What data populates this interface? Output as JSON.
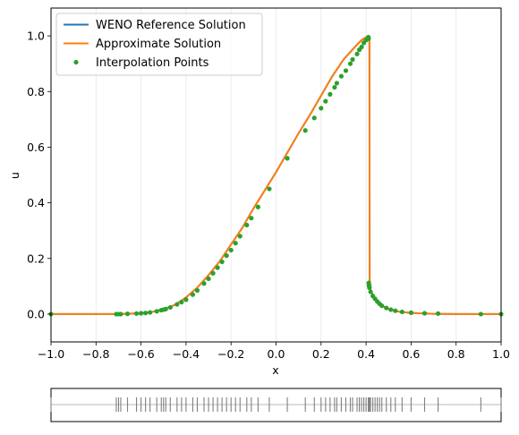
{
  "chart_data": [
    {
      "type": "line",
      "xlabel": "x",
      "ylabel": "u",
      "xlim": [
        -1.0,
        1.0
      ],
      "ylim": [
        -0.1,
        1.1
      ],
      "x_ticks": [
        "−1.0",
        "−0.8",
        "−0.6",
        "−0.4",
        "−0.2",
        "0.0",
        "0.2",
        "0.4",
        "0.6",
        "0.8",
        "1.0"
      ],
      "x_tick_values": [
        -1.0,
        -0.8,
        -0.6,
        -0.4,
        -0.2,
        0.0,
        0.2,
        0.4,
        0.6,
        0.8,
        1.0
      ],
      "y_ticks": [
        "0.0",
        "0.2",
        "0.4",
        "0.6",
        "0.8",
        "1.0"
      ],
      "y_tick_values": [
        0.0,
        0.2,
        0.4,
        0.6,
        0.8,
        1.0
      ],
      "grid": "vertical",
      "legend_position": "top-left",
      "colors": {
        "reference": "#1f77b4",
        "approx": "#ff7f0e",
        "points": "#2ca02c"
      },
      "series": [
        {
          "name": "WENO Reference Solution",
          "style": "line",
          "x": [
            -1.0,
            -0.7,
            -0.6,
            -0.55,
            -0.5,
            -0.45,
            -0.4,
            -0.35,
            -0.3,
            -0.25,
            -0.2,
            -0.15,
            -0.1,
            -0.05,
            0.0,
            0.05,
            0.1,
            0.15,
            0.2,
            0.25,
            0.3,
            0.35,
            0.38,
            0.4,
            0.41,
            0.415,
            0.416,
            0.42,
            0.44,
            0.47,
            0.5,
            0.55,
            0.6,
            0.7,
            0.8,
            1.0
          ],
          "y": [
            0.0,
            0.0,
            0.003,
            0.008,
            0.018,
            0.033,
            0.06,
            0.095,
            0.14,
            0.19,
            0.25,
            0.31,
            0.38,
            0.445,
            0.51,
            0.58,
            0.65,
            0.715,
            0.785,
            0.855,
            0.915,
            0.96,
            0.985,
            0.995,
            1.0,
            0.99,
            0.12,
            0.085,
            0.055,
            0.03,
            0.018,
            0.008,
            0.004,
            0.001,
            0.0,
            0.0
          ]
        },
        {
          "name": "Approximate Solution",
          "style": "line",
          "x": [
            -1.0,
            -0.7,
            -0.6,
            -0.55,
            -0.5,
            -0.45,
            -0.4,
            -0.35,
            -0.3,
            -0.25,
            -0.2,
            -0.15,
            -0.1,
            -0.05,
            0.0,
            0.05,
            0.1,
            0.15,
            0.2,
            0.25,
            0.3,
            0.35,
            0.38,
            0.4,
            0.41,
            0.415,
            0.416,
            0.42,
            0.44,
            0.47,
            0.5,
            0.55,
            0.6,
            0.7,
            0.8,
            1.0
          ],
          "y": [
            0.0,
            0.0,
            0.003,
            0.008,
            0.018,
            0.033,
            0.06,
            0.095,
            0.14,
            0.19,
            0.25,
            0.31,
            0.38,
            0.445,
            0.51,
            0.58,
            0.65,
            0.715,
            0.785,
            0.855,
            0.915,
            0.96,
            0.985,
            0.995,
            1.0,
            0.99,
            0.12,
            0.085,
            0.055,
            0.03,
            0.018,
            0.008,
            0.004,
            0.001,
            0.0,
            0.0
          ]
        },
        {
          "name": "Interpolation Points",
          "style": "markers",
          "x": [
            -1.0,
            -0.71,
            -0.7,
            -0.69,
            -0.66,
            -0.62,
            -0.6,
            -0.58,
            -0.56,
            -0.53,
            -0.51,
            -0.5,
            -0.49,
            -0.47,
            -0.44,
            -0.42,
            -0.4,
            -0.37,
            -0.35,
            -0.32,
            -0.3,
            -0.28,
            -0.26,
            -0.24,
            -0.22,
            -0.2,
            -0.18,
            -0.16,
            -0.13,
            -0.11,
            -0.08,
            -0.03,
            0.05,
            0.13,
            0.17,
            0.2,
            0.22,
            0.24,
            0.26,
            0.27,
            0.29,
            0.31,
            0.33,
            0.34,
            0.36,
            0.37,
            0.38,
            0.39,
            0.4,
            0.41,
            0.411,
            0.412,
            0.413,
            0.414,
            0.415,
            0.42,
            0.43,
            0.44,
            0.45,
            0.46,
            0.47,
            0.49,
            0.51,
            0.53,
            0.56,
            0.6,
            0.66,
            0.72,
            0.91,
            1.0
          ],
          "y": [
            0.0,
            0.0,
            0.0,
            0.0,
            0.001,
            0.002,
            0.003,
            0.004,
            0.006,
            0.01,
            0.014,
            0.016,
            0.018,
            0.024,
            0.035,
            0.043,
            0.052,
            0.07,
            0.085,
            0.11,
            0.127,
            0.147,
            0.167,
            0.188,
            0.21,
            0.23,
            0.255,
            0.28,
            0.32,
            0.345,
            0.385,
            0.45,
            0.56,
            0.66,
            0.705,
            0.74,
            0.765,
            0.79,
            0.815,
            0.83,
            0.855,
            0.875,
            0.9,
            0.915,
            0.935,
            0.95,
            0.96,
            0.975,
            0.985,
            0.995,
            0.99,
            0.112,
            0.105,
            0.1,
            0.095,
            0.08,
            0.065,
            0.055,
            0.045,
            0.037,
            0.03,
            0.022,
            0.016,
            0.012,
            0.008,
            0.005,
            0.003,
            0.002,
            0.0,
            0.0
          ]
        }
      ]
    },
    {
      "type": "scatter",
      "xlim": [
        -1.0,
        1.0
      ],
      "description": "interpolation point locations (rug)",
      "x": [
        -1.0,
        -0.71,
        -0.7,
        -0.69,
        -0.66,
        -0.62,
        -0.6,
        -0.58,
        -0.56,
        -0.53,
        -0.51,
        -0.5,
        -0.49,
        -0.47,
        -0.44,
        -0.42,
        -0.4,
        -0.37,
        -0.35,
        -0.32,
        -0.3,
        -0.28,
        -0.26,
        -0.24,
        -0.22,
        -0.2,
        -0.18,
        -0.16,
        -0.13,
        -0.11,
        -0.08,
        -0.03,
        0.05,
        0.13,
        0.17,
        0.2,
        0.22,
        0.24,
        0.26,
        0.27,
        0.29,
        0.31,
        0.33,
        0.34,
        0.36,
        0.37,
        0.38,
        0.39,
        0.4,
        0.41,
        0.411,
        0.412,
        0.413,
        0.414,
        0.415,
        0.42,
        0.43,
        0.44,
        0.45,
        0.46,
        0.47,
        0.49,
        0.51,
        0.53,
        0.56,
        0.6,
        0.66,
        0.72,
        0.91,
        1.0
      ]
    }
  ]
}
